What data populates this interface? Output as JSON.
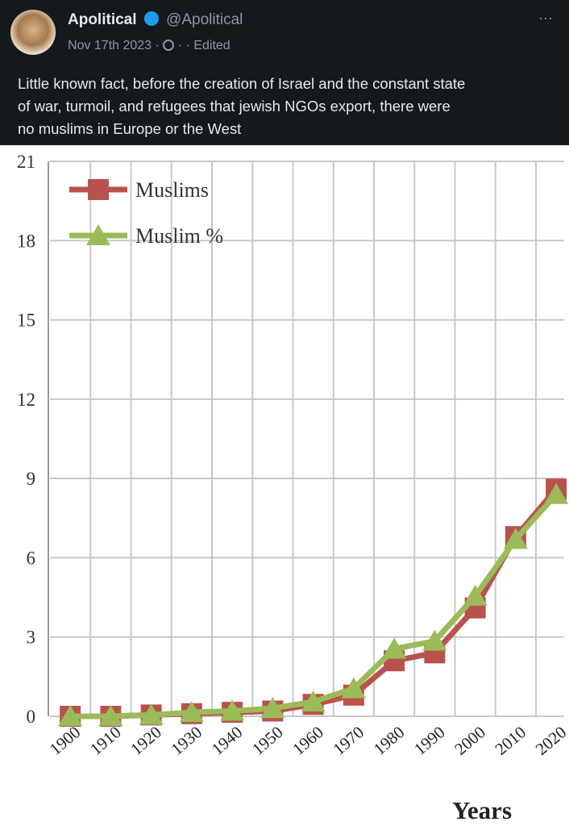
{
  "post": {
    "name": "Apolitical",
    "handle": "@Apolitical",
    "date": "Nov 17th 2023",
    "separator": "·",
    "edited": "Edited",
    "more": "···",
    "text_lines": [
      "Little known fact, before the creation of Israel and the constant state",
      "of war, turmoil, and refugees that jewish NGOs export, there were",
      "no muslims in Europe or the West"
    ]
  },
  "chart_data": {
    "type": "line",
    "x_label": "Years",
    "categories": [
      "1900",
      "1910",
      "1920",
      "1930",
      "1940",
      "1950",
      "1960",
      "1970",
      "1980",
      "1990",
      "2000",
      "2010",
      "2020"
    ],
    "series": [
      {
        "name": "Muslims",
        "color": "#b9524d",
        "marker": "square",
        "values": [
          0,
          0,
          0.05,
          0.1,
          0.15,
          0.2,
          0.45,
          0.8,
          2.1,
          2.4,
          4.1,
          6.8,
          8.6
        ]
      },
      {
        "name": "Muslim %",
        "color": "#9bbb59",
        "marker": "triangle",
        "values": [
          0,
          0,
          0.05,
          0.15,
          0.2,
          0.3,
          0.55,
          1.05,
          2.55,
          2.85,
          4.55,
          6.7,
          8.4
        ]
      }
    ],
    "ylim": [
      0,
      21
    ],
    "yticks": [
      0,
      3,
      6,
      9,
      12,
      15,
      18,
      21
    ],
    "grid": true,
    "legend": "upper left"
  }
}
